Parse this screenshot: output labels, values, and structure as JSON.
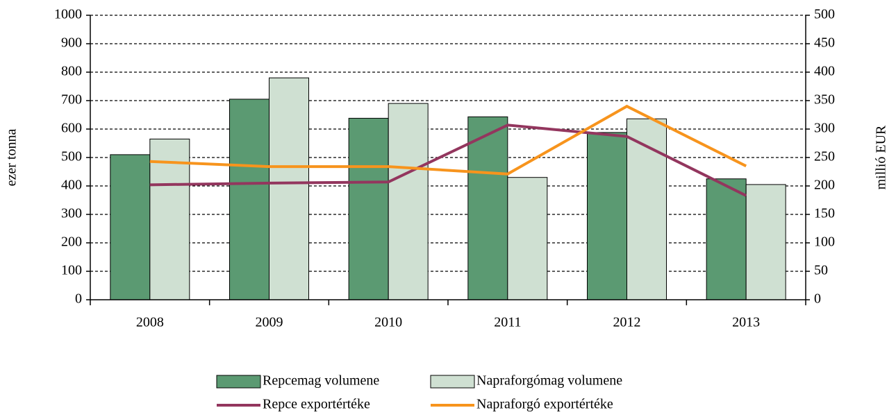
{
  "chart_data": {
    "type": "bar-line",
    "categories": [
      "2008",
      "2009",
      "2010",
      "2011",
      "2012",
      "2013"
    ],
    "ylabel": "ezer tonna",
    "y2label": "millió EUR",
    "ylim": [
      0,
      1000
    ],
    "yticks": [
      0,
      100,
      200,
      300,
      400,
      500,
      600,
      700,
      800,
      900,
      1000
    ],
    "y2lim": [
      0,
      500
    ],
    "y2ticks": [
      0,
      50,
      100,
      150,
      200,
      250,
      300,
      350,
      400,
      450,
      500
    ],
    "grid": true,
    "series": [
      {
        "name": "Repcemag volumene",
        "type": "bar",
        "color": "#5b9a72",
        "values": [
          510,
          705,
          638,
          643,
          588,
          425
        ]
      },
      {
        "name": "Napraforgómag volumene",
        "type": "bar",
        "color": "#cfe0d2",
        "values": [
          565,
          780,
          690,
          430,
          636,
          405
        ]
      },
      {
        "name": "Repce exportértéke",
        "type": "line",
        "axis": "y2",
        "color": "#93365e",
        "values": [
          202,
          205,
          207,
          307,
          287,
          183
        ]
      },
      {
        "name": "Napraforgó exportértéke",
        "type": "line",
        "axis": "y2",
        "color": "#f7941d",
        "values": [
          243,
          234,
          234,
          221,
          340,
          235
        ]
      }
    ]
  }
}
